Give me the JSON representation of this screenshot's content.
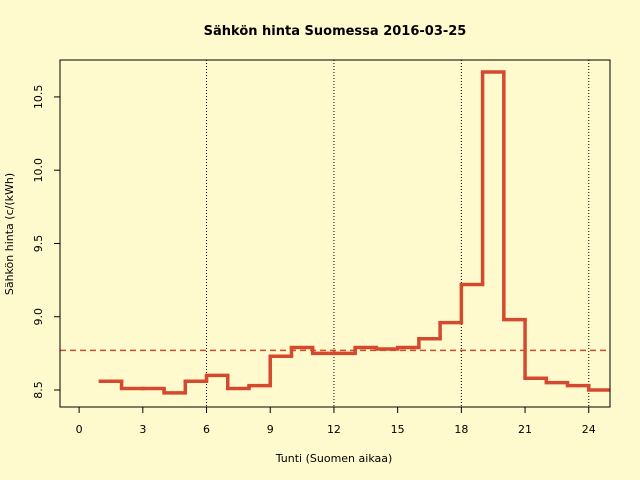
{
  "chart_data": {
    "type": "step",
    "title": "Sähkön hinta Suomessa 2016-03-25",
    "x_label": "Tunti (Suomen aikaa)",
    "y_label": "Sähkön hinta (c/(kWh)",
    "x": [
      1,
      2,
      3,
      4,
      5,
      6,
      7,
      8,
      9,
      10,
      11,
      12,
      13,
      14,
      15,
      16,
      17,
      18,
      19,
      20,
      21,
      22,
      23,
      24
    ],
    "values": [
      8.56,
      8.51,
      8.51,
      8.48,
      8.56,
      8.6,
      8.51,
      8.53,
      8.73,
      8.79,
      8.75,
      8.75,
      8.79,
      8.78,
      8.79,
      8.85,
      8.96,
      9.22,
      10.67,
      8.98,
      8.58,
      8.55,
      8.53,
      8.5
    ],
    "color": "#d44a2e",
    "mean_line": 8.77,
    "vlines": [
      6,
      12,
      18,
      24
    ],
    "xlim": [
      -0.9,
      25
    ],
    "ylim": [
      8.384,
      10.752
    ],
    "xticks": [
      0,
      3,
      6,
      9,
      12,
      15,
      18,
      21,
      24
    ],
    "yticks": [
      {
        "value": 8.5,
        "label": "8.5"
      },
      {
        "value": 9,
        "label": "9.0"
      },
      {
        "value": 9.5,
        "label": "9.5"
      },
      {
        "value": 10,
        "label": "10.0"
      },
      {
        "value": 10.5,
        "label": "10.5"
      }
    ]
  }
}
